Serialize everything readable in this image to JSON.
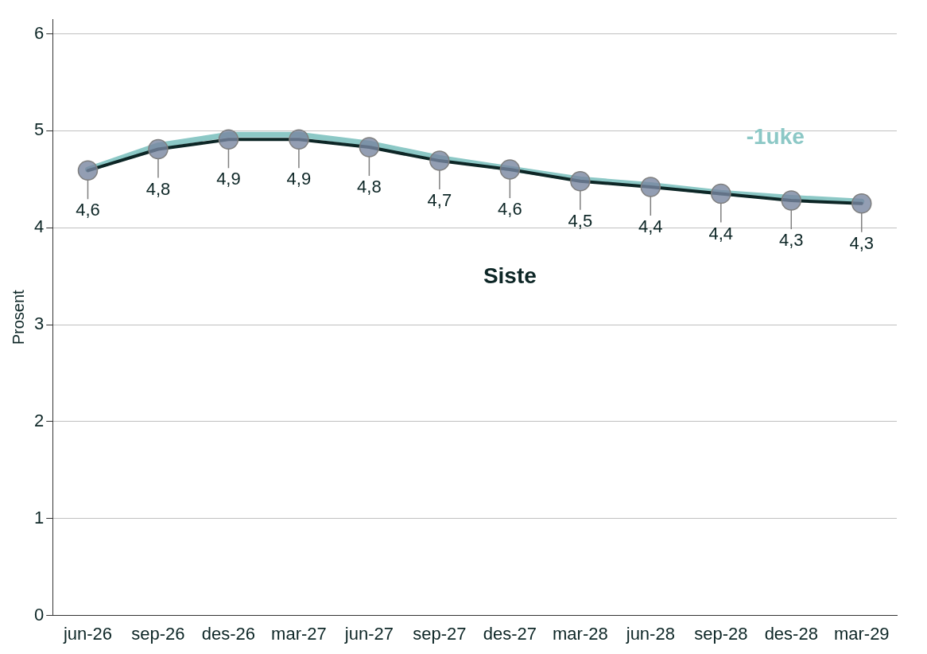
{
  "chart_data": {
    "type": "line",
    "ylabel": "Prosent",
    "categories": [
      "jun-26",
      "sep-26",
      "des-26",
      "mar-27",
      "jun-27",
      "sep-27",
      "des-27",
      "mar-28",
      "jun-28",
      "sep-28",
      "des-28",
      "mar-29"
    ],
    "ylim": [
      0,
      6.15
    ],
    "yticks": [
      0,
      1,
      2,
      3,
      4,
      5,
      6
    ],
    "grid": "y",
    "legend": false,
    "series": [
      {
        "name": "-1uke",
        "color": "#8cc8c6",
        "marker": "none",
        "values": [
          4.6,
          4.85,
          4.96,
          4.96,
          4.87,
          4.72,
          4.61,
          4.5,
          4.44,
          4.36,
          4.31,
          4.27
        ]
      },
      {
        "name": "Siste",
        "color": "#0d2626",
        "marker": "circle",
        "values": [
          4.59,
          4.81,
          4.91,
          4.91,
          4.83,
          4.69,
          4.6,
          4.48,
          4.42,
          4.35,
          4.28,
          4.25
        ],
        "value_labels": [
          "4,6",
          "4,8",
          "4,9",
          "4,9",
          "4,8",
          "4,7",
          "4,6",
          "4,5",
          "4,4",
          "4,4",
          "4,3",
          "4,3"
        ]
      }
    ]
  }
}
